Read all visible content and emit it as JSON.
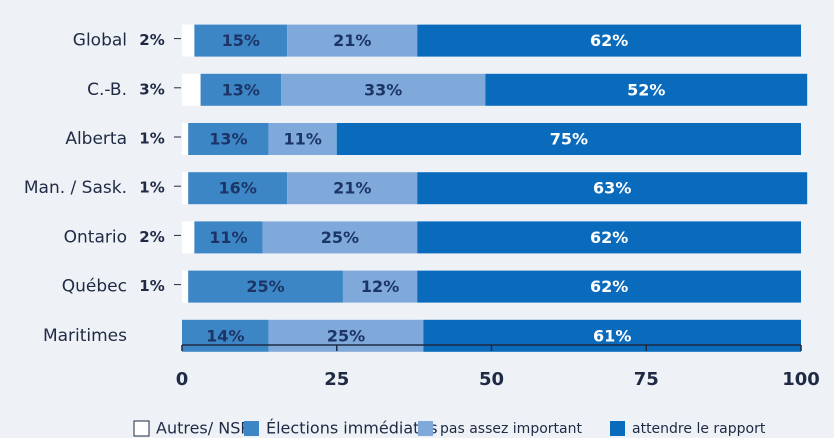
{
  "chart_data": {
    "type": "stacked-bar-horizontal",
    "categories": [
      "Global",
      "C.-B.",
      "Alberta",
      "Man. / Sask.",
      "Ontario",
      "Québec",
      "Maritimes"
    ],
    "series": [
      {
        "name": "Autres/ NSP",
        "color": "#ffffff",
        "values": [
          2,
          3,
          1,
          1,
          2,
          1,
          null
        ],
        "value_labels": [
          "2%",
          "3%",
          "1%",
          "1%",
          "2%",
          "1%",
          null
        ]
      },
      {
        "name": "Élections immédiates",
        "color": "#3d86c6",
        "values": [
          15,
          13,
          13,
          16,
          11,
          25,
          14
        ],
        "value_labels": [
          "15%",
          "13%",
          "13%",
          "16%",
          "11%",
          "25%",
          "14%"
        ]
      },
      {
        "name": "pas assez important",
        "color": "#7ea9da",
        "values": [
          21,
          33,
          11,
          21,
          25,
          12,
          25
        ],
        "value_labels": [
          "21%",
          "33%",
          "11%",
          "21%",
          "25%",
          "12%",
          "25%"
        ]
      },
      {
        "name": "attendre le rapport",
        "color": "#0a6bbd",
        "values": [
          62,
          52,
          75,
          63,
          62,
          62,
          61
        ],
        "value_labels": [
          "62%",
          "52%",
          "75%",
          "63%",
          "62%",
          "62%",
          "61%"
        ]
      }
    ],
    "xlim": [
      0,
      100
    ],
    "xticks": [
      0,
      25,
      50,
      75,
      100
    ]
  }
}
